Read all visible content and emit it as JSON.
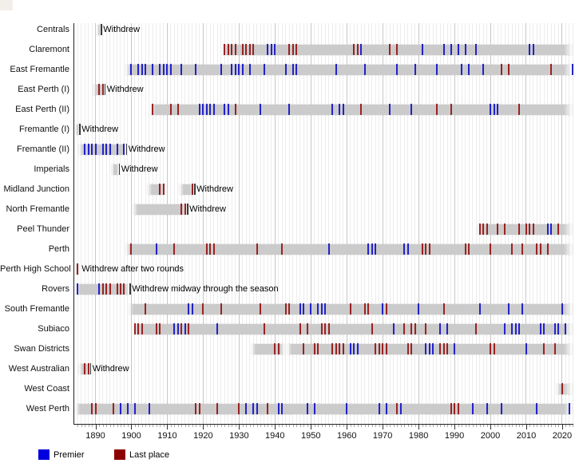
{
  "legend": {
    "premier_label": "Premier",
    "last_place_label": "Last place"
  },
  "colors": {
    "premier_tick": "#2222cc",
    "last_place_tick": "#9b2222",
    "legend_premier": "#0000e0",
    "legend_last_place": "#8b0000",
    "bar": "#cbcbcb",
    "grid_decade": "#c6c6c6",
    "grid_year": "#ececec",
    "axis": "#222222"
  },
  "axis": {
    "start_year": 1885,
    "end_year": 2023,
    "decade_labels": [
      "1890",
      "1900",
      "1910",
      "1920",
      "1930",
      "1940",
      "1950",
      "1960",
      "1970",
      "1980",
      "1990",
      "2000",
      "2010",
      "2020"
    ]
  },
  "chart_data": {
    "type": "bar",
    "subtype": "timeline-gantt",
    "title": "",
    "xlabel": "",
    "ylabel": "",
    "x_range": [
      1885,
      2024
    ],
    "legend_entries": [
      "Premier",
      "Last place"
    ],
    "rows": [
      {
        "slug": "centrals",
        "label": "Centrals",
        "spans": [
          [
            1891,
            1891
          ]
        ],
        "premier": [],
        "last": [],
        "note": "Withdrew",
        "marker": true
      },
      {
        "slug": "claremont",
        "label": "Claremont",
        "spans": [
          [
            1926,
            2023
          ]
        ],
        "premier": [
          1938,
          1939,
          1940,
          1964,
          1981,
          1987,
          1989,
          1991,
          1993,
          1996,
          2011,
          2012
        ],
        "last": [
          1926,
          1927,
          1928,
          1929,
          1931,
          1932,
          1933,
          1934,
          1944,
          1945,
          1946,
          1962,
          1963,
          1972,
          1974
        ],
        "note": null,
        "marker": false
      },
      {
        "slug": "east-fremantle",
        "label": "East Fremantle",
        "spans": [
          [
            1899,
            2023
          ]
        ],
        "premier": [
          1900,
          1902,
          1903,
          1904,
          1906,
          1908,
          1909,
          1910,
          1911,
          1914,
          1918,
          1925,
          1928,
          1929,
          1930,
          1931,
          1933,
          1937,
          1943,
          1945,
          1946,
          1957,
          1965,
          1974,
          1979,
          1985,
          1992,
          1994,
          1998,
          2023
        ],
        "last": [
          2003,
          2005,
          2017
        ],
        "note": null,
        "marker": false
      },
      {
        "slug": "east-perth-1",
        "label": "East Perth (I)",
        "spans": [
          [
            1890,
            1892
          ]
        ],
        "premier": [],
        "last": [
          1891,
          1892
        ],
        "note": "Withdrew",
        "marker": true
      },
      {
        "slug": "east-perth-2",
        "label": "East Perth (II)",
        "spans": [
          [
            1906,
            2023
          ]
        ],
        "premier": [
          1919,
          1920,
          1921,
          1922,
          1923,
          1926,
          1927,
          1936,
          1944,
          1956,
          1958,
          1959,
          1972,
          1978,
          2000,
          2001,
          2002
        ],
        "last": [
          1906,
          1911,
          1913,
          1929,
          1964,
          1985,
          1989,
          2008
        ],
        "note": null,
        "marker": false
      },
      {
        "slug": "fremantle-1",
        "label": "Fremantle (I)",
        "spans": [
          [
            1885,
            1885
          ]
        ],
        "premier": [],
        "last": [],
        "note": "Withdrew",
        "marker": true
      },
      {
        "slug": "fremantle-2",
        "label": "Fremantle (II)",
        "spans": [
          [
            1886,
            1898
          ]
        ],
        "premier": [
          1887,
          1888,
          1889,
          1890,
          1892,
          1893,
          1894,
          1896,
          1898
        ],
        "last": [],
        "note": "Withdrew",
        "marker": true
      },
      {
        "slug": "imperials",
        "label": "Imperials",
        "spans": [
          [
            1895,
            1896
          ]
        ],
        "premier": [],
        "last": [],
        "note": "Withdrew",
        "marker": true
      },
      {
        "slug": "midland-junction",
        "label": "Midland Junction",
        "spans": [
          [
            1905,
            1909
          ],
          [
            1914,
            1917
          ]
        ],
        "premier": [],
        "last": [
          1908,
          1909,
          1917
        ],
        "note": "Withdrew",
        "marker": true
      },
      {
        "slug": "north-fremantle",
        "label": "North Fremantle",
        "spans": [
          [
            1901,
            1915
          ]
        ],
        "premier": [],
        "last": [
          1914,
          1915
        ],
        "note": "Withdrew",
        "marker": true
      },
      {
        "slug": "peel-thunder",
        "label": "Peel Thunder",
        "spans": [
          [
            1997,
            2023
          ]
        ],
        "premier": [
          2016,
          2017
        ],
        "last": [
          1997,
          1998,
          1999,
          2002,
          2004,
          2008,
          2010,
          2011,
          2012,
          2019
        ],
        "note": null,
        "marker": false
      },
      {
        "slug": "perth",
        "label": "Perth",
        "spans": [
          [
            1899,
            2023
          ]
        ],
        "premier": [
          1907,
          1955,
          1966,
          1967,
          1968,
          1976,
          1977
        ],
        "last": [
          1900,
          1912,
          1921,
          1922,
          1923,
          1935,
          1942,
          1981,
          1982,
          1983,
          1993,
          1994,
          2000,
          2006,
          2009,
          2013,
          2014,
          2016
        ],
        "note": null,
        "marker": false
      },
      {
        "slug": "perth-high-school",
        "label": "Perth High School",
        "spans": [
          [
            1885,
            1885
          ]
        ],
        "premier": [],
        "last": [
          1885
        ],
        "note": "Withdrew after two rounds",
        "marker": false
      },
      {
        "slug": "rovers",
        "label": "Rovers",
        "spans": [
          [
            1885,
            1899
          ]
        ],
        "premier": [
          1885,
          1891
        ],
        "last": [
          1892,
          1893,
          1894,
          1896,
          1897,
          1898
        ],
        "note": "Withdrew midway through the season",
        "marker": true
      },
      {
        "slug": "south-fremantle",
        "label": "South Fremantle",
        "spans": [
          [
            1900,
            2023
          ]
        ],
        "premier": [
          1916,
          1917,
          1947,
          1948,
          1950,
          1952,
          1953,
          1954,
          1970,
          1980,
          1997,
          2005,
          2009,
          2020
        ],
        "last": [
          1904,
          1920,
          1925,
          1936,
          1943,
          1944,
          1961,
          1965,
          1966,
          1971,
          1987
        ],
        "note": null,
        "marker": false
      },
      {
        "slug": "subiaco",
        "label": "Subiaco",
        "spans": [
          [
            1901,
            2023
          ]
        ],
        "premier": [
          1912,
          1913,
          1915,
          1924,
          1973,
          1986,
          1988,
          2004,
          2006,
          2007,
          2008,
          2014,
          2015,
          2018,
          2019,
          2021
        ],
        "last": [
          1901,
          1902,
          1903,
          1907,
          1908,
          1914,
          1916,
          1937,
          1947,
          1949,
          1953,
          1954,
          1955,
          1967,
          1976,
          1978,
          1979,
          1982,
          1996
        ],
        "note": null,
        "marker": false
      },
      {
        "slug": "swan-districts",
        "label": "Swan Districts",
        "spans": [
          [
            1934,
            1942
          ],
          [
            1944,
            2023
          ]
        ],
        "premier": [
          1961,
          1962,
          1963,
          1982,
          1983,
          1984,
          1990,
          2010
        ],
        "last": [
          1940,
          1941,
          1948,
          1951,
          1952,
          1956,
          1957,
          1958,
          1959,
          1968,
          1969,
          1970,
          1971,
          1977,
          1978,
          1986,
          1987,
          1988,
          2000,
          2001,
          2015,
          2018
        ],
        "note": null,
        "marker": false
      },
      {
        "slug": "west-australian",
        "label": "West Australian",
        "spans": [
          [
            1886,
            1888
          ]
        ],
        "premier": [],
        "last": [
          1887,
          1888
        ],
        "note": "Withdrew",
        "marker": true
      },
      {
        "slug": "west-coast",
        "label": "West Coast",
        "spans": [
          [
            2019,
            2023
          ]
        ],
        "premier": [],
        "last": [
          2020
        ],
        "note": null,
        "marker": false
      },
      {
        "slug": "west-perth",
        "label": "West Perth",
        "spans": [
          [
            1885,
            2023
          ]
        ],
        "premier": [
          1897,
          1899,
          1901,
          1905,
          1932,
          1934,
          1935,
          1941,
          1942,
          1949,
          1951,
          1960,
          1969,
          1971,
          1975,
          1995,
          1999,
          2003,
          2013,
          2022
        ],
        "last": [
          1889,
          1890,
          1895,
          1918,
          1919,
          1924,
          1930,
          1938,
          1974,
          1989,
          1990,
          1991
        ],
        "note": null,
        "marker": false
      }
    ]
  }
}
